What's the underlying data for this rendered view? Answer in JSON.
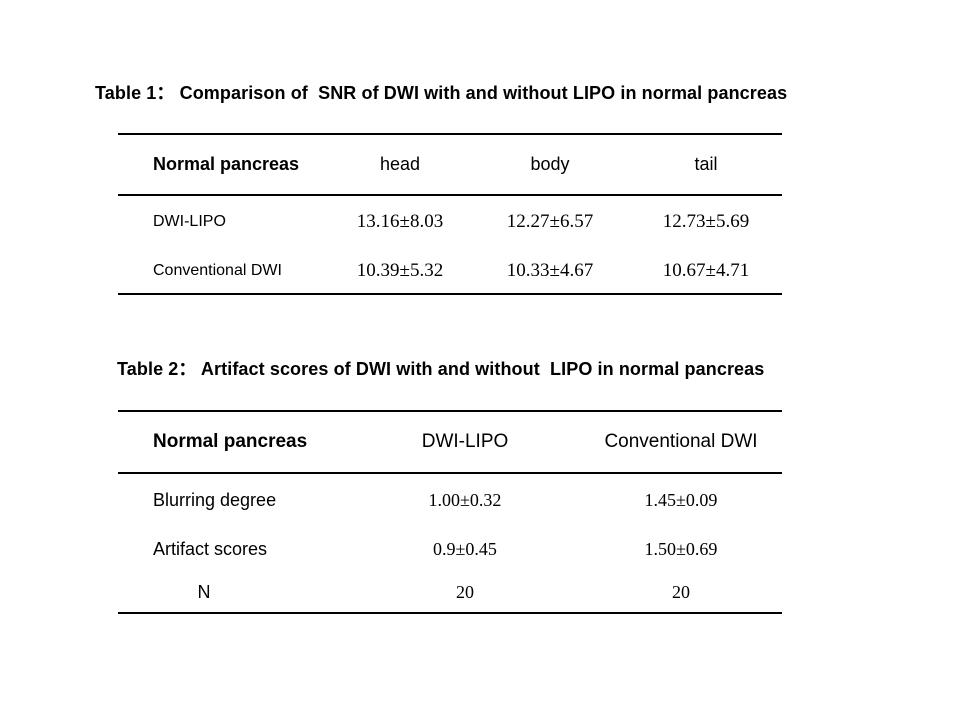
{
  "page": {
    "background_color": "#ffffff",
    "text_color": "#000000",
    "rule_color": "#000000"
  },
  "table1": {
    "title": "Table 1： Comparison of  SNR of DWI with and without LIPO in normal pancreas",
    "header": [
      "Normal pancreas",
      "head",
      "body",
      "tail"
    ],
    "rows": [
      {
        "label": "DWI-LIPO",
        "values": [
          "13.16±8.03",
          "12.27±6.57",
          "12.73±5.69"
        ]
      },
      {
        "label": "Conventional DWI",
        "values": [
          "10.39±5.32",
          "10.33±4.67",
          "10.67±4.71"
        ]
      }
    ]
  },
  "table2": {
    "title": "Table 2： Artifact scores of DWI with and without  LIPO in normal pancreas",
    "header": [
      "Normal pancreas",
      "DWI-LIPO",
      "Conventional DWI"
    ],
    "rows": [
      {
        "label": "Blurring degree",
        "values": [
          "1.00±0.32",
          "1.45±0.09"
        ]
      },
      {
        "label": "Artifact scores",
        "values": [
          "0.9±0.45",
          "1.50±0.69"
        ]
      },
      {
        "label": "N",
        "values": [
          "20",
          "20"
        ]
      }
    ]
  }
}
